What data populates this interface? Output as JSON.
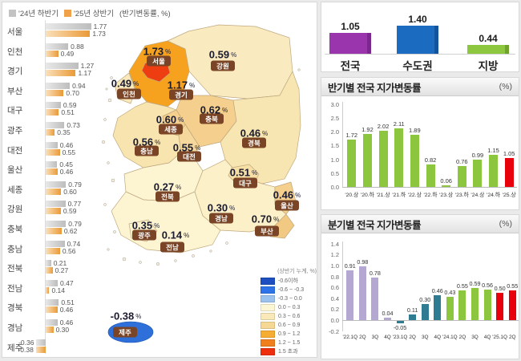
{
  "left_panel": {
    "legend": {
      "series1_label": "'24년 하반기",
      "series2_label": "'25년 상반기",
      "note": "(반기변동률, %)"
    }
  },
  "chart_data": [
    {
      "id": "regional-halfyear-bars",
      "type": "bar",
      "orientation": "horizontal",
      "legend_position": "top",
      "categories": [
        "서울",
        "인천",
        "경기",
        "부산",
        "대구",
        "광주",
        "대전",
        "울산",
        "세종",
        "강원",
        "충북",
        "충남",
        "전북",
        "전남",
        "경북",
        "경남",
        "제주"
      ],
      "series": [
        {
          "name": "'24년 하반기",
          "color_start": "#e8e8e8",
          "color_end": "#bdbdbd",
          "values": [
            1.77,
            0.88,
            1.27,
            0.94,
            0.59,
            0.73,
            0.46,
            0.45,
            0.79,
            0.77,
            0.79,
            0.74,
            0.21,
            0.47,
            0.51,
            0.46,
            -0.36
          ]
        },
        {
          "name": "'25년 상반기",
          "color_start": "#fae0ba",
          "color_end": "#ea9a38",
          "values": [
            1.73,
            0.49,
            1.17,
            0.7,
            0.51,
            0.35,
            0.55,
            0.46,
            0.6,
            0.59,
            0.62,
            0.56,
            0.27,
            0.14,
            0.46,
            0.3,
            -0.38
          ]
        }
      ]
    },
    {
      "id": "summary-bars",
      "type": "bar",
      "categories": [
        "전국",
        "수도권",
        "지방"
      ],
      "values": [
        1.05,
        1.4,
        0.44
      ],
      "colors": [
        "#9a35ad",
        "#1b6cc0",
        "#8dc63f"
      ],
      "edge_colors": [
        "#7c2790",
        "#14549c",
        "#6fa32c"
      ]
    },
    {
      "id": "half-yearly",
      "type": "bar",
      "title": "반기별 전국 지가변동률",
      "unit_label": "(%)",
      "categories": [
        "'20.상",
        "'20.하",
        "'21.상",
        "'21.하",
        "'22.상",
        "'22.하",
        "'23.상",
        "'23.하",
        "'24.상",
        "'24.하",
        "'25.상"
      ],
      "values": [
        1.72,
        1.92,
        2.02,
        2.11,
        1.89,
        0.82,
        0.06,
        0.76,
        0.99,
        1.15,
        1.05
      ],
      "bar_colors": [
        "#8cc63e",
        "#8cc63e",
        "#8cc63e",
        "#8cc63e",
        "#8cc63e",
        "#8cc63e",
        "#8cc63e",
        "#8cc63e",
        "#8cc63e",
        "#8cc63e",
        "#e8000d"
      ],
      "ylim": [
        0,
        3.0
      ],
      "ytick_step": 0.5,
      "grid": false
    },
    {
      "id": "quarterly",
      "type": "bar",
      "title": "분기별 전국 지가변동률",
      "unit_label": "(%)",
      "categories": [
        "'22.1Q",
        "2Q",
        "3Q",
        "4Q",
        "'23.1Q",
        "2Q",
        "3Q",
        "4Q",
        "'24.1Q",
        "2Q",
        "3Q",
        "4Q",
        "'25.1Q",
        "2Q"
      ],
      "values": [
        0.91,
        0.98,
        0.78,
        0.04,
        -0.05,
        0.11,
        0.3,
        0.46,
        0.43,
        0.55,
        0.59,
        0.56,
        0.5,
        0.55
      ],
      "bar_colors": [
        "#b4a7d2",
        "#b4a7d2",
        "#b4a7d2",
        "#b4a7d2",
        "#2e7b92",
        "#2e7b92",
        "#2e7b92",
        "#2e7b92",
        "#8cc63e",
        "#8cc63e",
        "#8cc63e",
        "#8cc63e",
        "#e8000d",
        "#e8000d"
      ],
      "ylim": [
        -0.2,
        1.4
      ],
      "ytick_step": 0.2,
      "grid": false
    }
  ],
  "map": {
    "percent_sign": "%",
    "regions": [
      {
        "id": "seoul",
        "name": "서울",
        "value": "1.73",
        "fill": "#ee3d10"
      },
      {
        "id": "incheon",
        "name": "인천",
        "value": "0.49",
        "fill": "#f9e8ba"
      },
      {
        "id": "gyeonggi",
        "name": "경기",
        "value": "1.17",
        "fill": "#f6a21f"
      },
      {
        "id": "gangwon",
        "name": "강원",
        "value": "0.59",
        "fill": "#faeabf"
      },
      {
        "id": "chungbuk",
        "name": "충북",
        "value": "0.62",
        "fill": "#f4cf8d"
      },
      {
        "id": "sejong",
        "name": "세종",
        "value": "0.60",
        "fill": "#f4cf8d"
      },
      {
        "id": "chungnam",
        "name": "충남",
        "value": "0.56",
        "fill": "#f8e4ae"
      },
      {
        "id": "daejeon",
        "name": "대전",
        "value": "0.55",
        "fill": "#f6d89c"
      },
      {
        "id": "gyeongbuk",
        "name": "경북",
        "value": "0.46",
        "fill": "#f8e6b2"
      },
      {
        "id": "daegu",
        "name": "대구",
        "value": "0.51",
        "fill": "#f7e0a6"
      },
      {
        "id": "jeonbuk",
        "name": "전북",
        "value": "0.27",
        "fill": "#fdf5d2"
      },
      {
        "id": "ulsan",
        "name": "울산",
        "value": "0.46",
        "fill": "#f4cf8d"
      },
      {
        "id": "gyeongnam",
        "name": "경남",
        "value": "0.30",
        "fill": "#fbf0c8"
      },
      {
        "id": "busan",
        "name": "부산",
        "value": "0.70",
        "fill": "#f2c983"
      },
      {
        "id": "gwangju",
        "name": "광주",
        "value": "0.35",
        "fill": "#fcf3cd"
      },
      {
        "id": "jeonnam",
        "name": "전남",
        "value": "0.14",
        "fill": "#fdf5d2"
      },
      {
        "id": "jeju",
        "name": "제주",
        "value": "-0.38",
        "fill": "#2e6fd9"
      }
    ],
    "legend": {
      "title": "(상반기 누계, %)",
      "items": [
        {
          "label": "-0.6이하",
          "color": "#1d4fc0"
        },
        {
          "label": "-0.6 ~ -0.3",
          "color": "#2e73e8"
        },
        {
          "label": "-0.3 ~ 0.0",
          "color": "#9cc2ee"
        },
        {
          "label": "0.0 ~ 0.3",
          "color": "#fdf6d4"
        },
        {
          "label": "0.3 ~ 0.6",
          "color": "#f9e8b8"
        },
        {
          "label": "0.6 ~ 0.9",
          "color": "#f5d894"
        },
        {
          "label": "0.9 ~ 1.2",
          "color": "#f6ad33"
        },
        {
          "label": "1.2 ~ 1.5",
          "color": "#f07f1e"
        },
        {
          "label": "1.5 초과",
          "color": "#ee2f0d"
        }
      ]
    }
  }
}
